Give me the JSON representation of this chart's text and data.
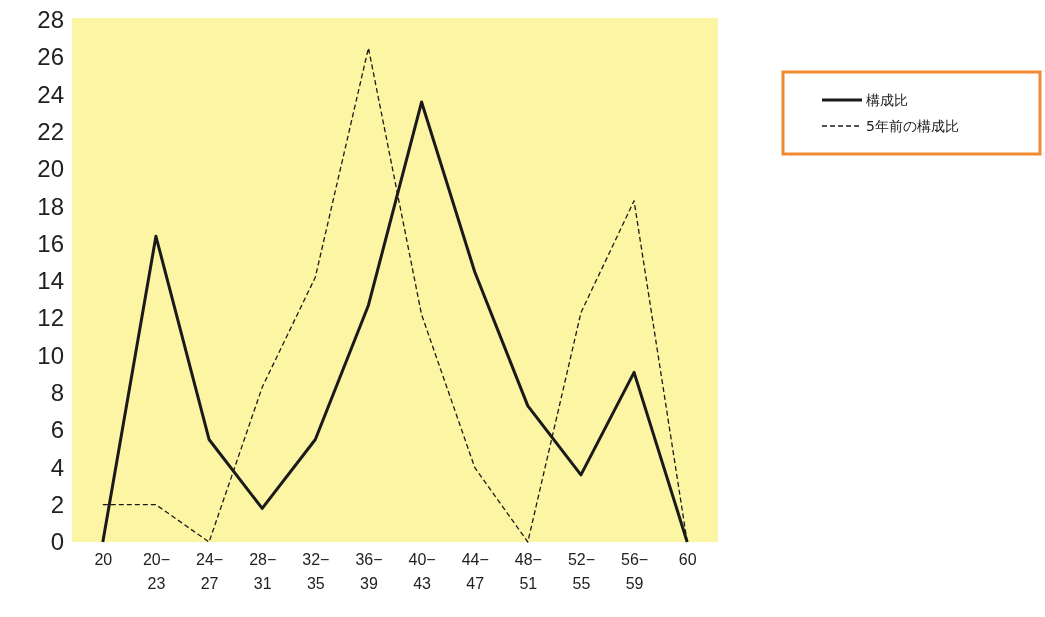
{
  "chart_data": {
    "type": "line",
    "categories": [
      "20",
      "20−23",
      "24−27",
      "28−31",
      "32−35",
      "36−39",
      "40−43",
      "44−47",
      "48−51",
      "52−55",
      "56−59",
      "60"
    ],
    "series": [
      {
        "name": "構成比",
        "color": "#1a1a1a",
        "line_style": "solid",
        "values": [
          0,
          16.4,
          5.5,
          1.8,
          5.5,
          12.7,
          23.6,
          14.5,
          7.3,
          3.6,
          9.1,
          0
        ]
      },
      {
        "name": "5年前の構成比",
        "color": "#1a1a1a",
        "line_style": "dashed",
        "values": [
          2,
          2,
          0,
          8.3,
          14.2,
          26.5,
          12.2,
          4,
          0,
          12.3,
          18.3,
          0
        ]
      }
    ],
    "ylim": [
      0,
      28
    ],
    "yticks": [
      0,
      2,
      4,
      6,
      8,
      10,
      12,
      14,
      16,
      18,
      20,
      22,
      24,
      26,
      28
    ],
    "legend": "right",
    "marker": "none",
    "grid": false
  }
}
